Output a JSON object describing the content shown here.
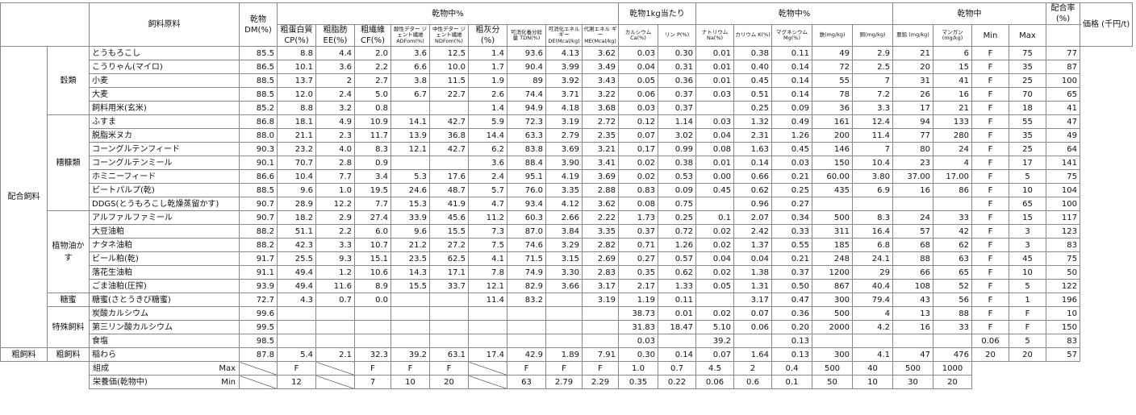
{
  "headers": {
    "feed_name": "飼料原料",
    "dm_pct_group": "乾物中%",
    "per_kg_group": "乾物1kg当たり",
    "dm_pct_group2": "乾物中%",
    "dm_group3": "乾物中",
    "mix_rate": "配合率(%)",
    "price": "価格 (千円/t)",
    "dm": "乾物 DM(%)",
    "cp": "粗蛋白質 CP(%)",
    "ee": "粗脂肪 EE(%)",
    "cf": "粗繊維 CF(%)",
    "adf": "酸性デター ジェント繊維 ADFom(%)",
    "ndf": "中性デター ジェント繊維 NDFom(%)",
    "ash": "粗灰分(%)",
    "tdn": "可消化養分総量 TDN(%)",
    "de": "可消化エネル ギー DE(Mcal/kg)",
    "me": "代謝エネル ギー ME(Mcal/kg)",
    "ca": "カルシウム Ca(%)",
    "p": "リン P(%)",
    "na": "ナトリウム Na(%)",
    "k": "カリウム K(%)",
    "mg": "マグネシウム Mg(%)",
    "fe": "鉄(mg/kg)",
    "cu": "銅(mg/kg)",
    "zn": "亜鉛 (mg/kg)",
    "mn": "マンガン (mg/kg)",
    "min": "Min",
    "max": "Max"
  },
  "categories": {
    "main": "配合飼料",
    "rough": "粗飼料",
    "rough_sub": "粗飼料",
    "grain": "穀類",
    "bran": "糟糠類",
    "oilcake": "植物油かす",
    "molasses": "糖蜜",
    "special": "特殊飼料"
  },
  "rows": [
    [
      "とうもろこし",
      "85.5",
      "8.8",
      "4.4",
      "2.0",
      "3.6",
      "12.5",
      "1.4",
      "93.6",
      "4.13",
      "3.62",
      "0.03",
      "0.30",
      "0.01",
      "0.38",
      "0.11",
      "49",
      "2.9",
      "21",
      "6",
      "F",
      "75",
      "77"
    ],
    [
      "こうりゃん(マイロ)",
      "86.5",
      "10.1",
      "3.6",
      "2.2",
      "6.6",
      "10.0",
      "1.7",
      "90.4",
      "3.99",
      "3.49",
      "0.04",
      "0.31",
      "0.01",
      "0.40",
      "0.14",
      "72",
      "2.5",
      "20",
      "15",
      "F",
      "35",
      "87"
    ],
    [
      "小麦",
      "88.5",
      "13.7",
      "2",
      "2.7",
      "3.8",
      "11.5",
      "1.9",
      "89",
      "3.92",
      "3.43",
      "0.05",
      "0.36",
      "0.01",
      "0.45",
      "0.14",
      "55",
      "7",
      "31",
      "41",
      "F",
      "25",
      "100"
    ],
    [
      "大麦",
      "88.5",
      "12.0",
      "2.4",
      "5.0",
      "6.7",
      "22.7",
      "2.6",
      "74.4",
      "3.71",
      "3.22",
      "0.06",
      "0.37",
      "0.03",
      "0.51",
      "0.14",
      "78",
      "7.2",
      "26",
      "16",
      "F",
      "70",
      "65"
    ],
    [
      "飼料用米(玄米)",
      "85.2",
      "8.8",
      "3.2",
      "0.8",
      "",
      "",
      "1.4",
      "94.9",
      "4.18",
      "3.68",
      "0.03",
      "0.37",
      "",
      "0.25",
      "0.09",
      "36",
      "3.3",
      "17",
      "21",
      "F",
      "18",
      "41"
    ],
    [
      "ふすま",
      "86.8",
      "18.1",
      "4.9",
      "10.9",
      "14.1",
      "42.7",
      "5.9",
      "72.3",
      "3.19",
      "2.72",
      "0.12",
      "1.14",
      "0.03",
      "1.32",
      "0.49",
      "161",
      "12.4",
      "94",
      "133",
      "F",
      "55",
      "47"
    ],
    [
      "脱脂米ヌカ",
      "88.0",
      "21.1",
      "2.3",
      "11.7",
      "13.9",
      "36.8",
      "14.4",
      "63.3",
      "2.79",
      "2.35",
      "0.07",
      "3.02",
      "0.04",
      "2.31",
      "1.26",
      "200",
      "11.4",
      "77",
      "280",
      "F",
      "35",
      "49"
    ],
    [
      "コーングルテンフィード",
      "90.3",
      "23.2",
      "4.0",
      "8.3",
      "12.1",
      "42.7",
      "6.2",
      "83.8",
      "3.69",
      "3.21",
      "0.17",
      "0.99",
      "0.08",
      "1.63",
      "0.45",
      "146",
      "7",
      "80",
      "24",
      "F",
      "25",
      "64"
    ],
    [
      "コーングルテンミール",
      "90.1",
      "70.7",
      "2.8",
      "0.9",
      "",
      "",
      "3.6",
      "88.4",
      "3.90",
      "3.41",
      "0.02",
      "0.38",
      "0.01",
      "0.14",
      "0.03",
      "150",
      "10.4",
      "23",
      "4",
      "F",
      "17",
      "141"
    ],
    [
      "ホミニーフィード",
      "86.6",
      "10.4",
      "7.7",
      "3.4",
      "5.3",
      "17.6",
      "2.4",
      "95.1",
      "4.19",
      "3.69",
      "0.02",
      "0.53",
      "0.00",
      "0.66",
      "0.21",
      "60.00",
      "3.80",
      "37.00",
      "17.00",
      "F",
      "5",
      "75"
    ],
    [
      "ビートパルプ(乾)",
      "88.5",
      "9.6",
      "1.0",
      "19.5",
      "24.6",
      "48.7",
      "5.7",
      "76.0",
      "3.35",
      "2.88",
      "0.83",
      "0.09",
      "0.45",
      "0.62",
      "0.25",
      "435",
      "6.9",
      "16",
      "86",
      "F",
      "10",
      "104"
    ],
    [
      "DDGS(とうもろこし乾燥蒸留かす)",
      "90.7",
      "28.9",
      "12.2",
      "7.7",
      "15.3",
      "41.9",
      "4.7",
      "93.4",
      "4.12",
      "3.62",
      "0.08",
      "0.75",
      "",
      "0.96",
      "0.27",
      "",
      "",
      "",
      "",
      "F",
      "65",
      "100"
    ],
    [
      "アルファルファミール",
      "90.7",
      "18.2",
      "2.9",
      "27.4",
      "33.9",
      "45.6",
      "11.2",
      "60.3",
      "2.66",
      "2.22",
      "1.73",
      "0.25",
      "0.1",
      "2.07",
      "0.34",
      "500",
      "8.3",
      "24",
      "33",
      "F",
      "15",
      "117"
    ],
    [
      "大豆油粕",
      "88.2",
      "51.1",
      "2.2",
      "6.0",
      "9.6",
      "15.5",
      "7.3",
      "87.0",
      "3.84",
      "3.35",
      "0.37",
      "0.72",
      "0.02",
      "2.42",
      "0.33",
      "311",
      "16.4",
      "57",
      "42",
      "F",
      "3",
      "123"
    ],
    [
      "ナタネ油粕",
      "88.2",
      "42.3",
      "3.3",
      "10.7",
      "21.2",
      "27.2",
      "7.5",
      "74.6",
      "3.29",
      "2.82",
      "0.71",
      "1.26",
      "0.02",
      "1.37",
      "0.55",
      "185",
      "6.8",
      "68",
      "62",
      "F",
      "3",
      "83"
    ],
    [
      "ビール粕(乾)",
      "91.7",
      "25.5",
      "9.3",
      "15.1",
      "23.5",
      "62.5",
      "4.1",
      "71.5",
      "3.15",
      "2.69",
      "0.27",
      "0.57",
      "0.04",
      "0.04",
      "0.21",
      "248",
      "24.1",
      "88",
      "63",
      "F",
      "45",
      "75"
    ],
    [
      "落花生油粕",
      "91.1",
      "49.4",
      "1.2",
      "10.6",
      "14.3",
      "17.1",
      "7.8",
      "74.9",
      "3.30",
      "2.83",
      "0.35",
      "0.62",
      "0.02",
      "1.38",
      "0.37",
      "1200",
      "29",
      "66",
      "65",
      "F",
      "10",
      "50"
    ],
    [
      "ごま油粕(圧搾)",
      "93.9",
      "49.4",
      "11.6",
      "8.9",
      "15.5",
      "33.7",
      "12.1",
      "82.9",
      "3.66",
      "3.17",
      "2.17",
      "1.33",
      "0.05",
      "1.31",
      "0.50",
      "867",
      "40.4",
      "108",
      "52",
      "F",
      "5",
      "122"
    ],
    [
      "糖蜜(さとうきび糖蜜)",
      "72.7",
      "4.3",
      "0.7",
      "0.0",
      "",
      "",
      "11.4",
      "83.2",
      "",
      "3.19",
      "1.19",
      "0.11",
      "",
      "3.17",
      "0.47",
      "300",
      "79.4",
      "43",
      "56",
      "F",
      "1",
      "196"
    ],
    [
      "炭酸カルシウム",
      "99.6",
      "",
      "",
      "",
      "",
      "",
      "",
      "",
      "",
      "",
      "38.73",
      "0.01",
      "0.02",
      "0.07",
      "0.36",
      "500",
      "4",
      "13",
      "88",
      "F",
      "F",
      "10"
    ],
    [
      "第三リン酸カルシウム",
      "99.5",
      "",
      "",
      "",
      "",
      "",
      "",
      "",
      "",
      "",
      "31.83",
      "18.47",
      "5.10",
      "0.06",
      "0.20",
      "2000",
      "4.2",
      "16",
      "33",
      "F",
      "F",
      "150"
    ],
    [
      "食塩",
      "98.5",
      "",
      "",
      "",
      "",
      "",
      "",
      "",
      "",
      "",
      "0.03",
      "",
      "39.2",
      "",
      "0.13",
      "",
      "",
      "",
      "",
      "0.06",
      "5",
      "83"
    ],
    [
      "稲わら",
      "87.8",
      "5.4",
      "2.1",
      "32.3",
      "39.2",
      "63.1",
      "17.4",
      "42.9",
      "1.89",
      "7.91",
      "0.30",
      "0.14",
      "0.07",
      "1.64",
      "0.13",
      "300",
      "4.1",
      "47",
      "476",
      "20",
      "20",
      "57"
    ]
  ],
  "footer": {
    "label1": "組成",
    "label1_right": "Max",
    "label2": "栄養価(乾物中)",
    "label2_right": "Min",
    "max_row": [
      "F",
      "",
      "F",
      "F",
      "F",
      "",
      "F",
      "F",
      "F",
      "1.0",
      "0.7",
      "4.5",
      "2",
      "0.4",
      "500",
      "40",
      "500",
      "1000"
    ],
    "min_row": [
      "12",
      "",
      "7",
      "10",
      "20",
      "",
      "63",
      "2.79",
      "2.29",
      "0.35",
      "0.22",
      "0.06",
      "0.6",
      "0.1",
      "50",
      "10",
      "30",
      "20"
    ]
  }
}
